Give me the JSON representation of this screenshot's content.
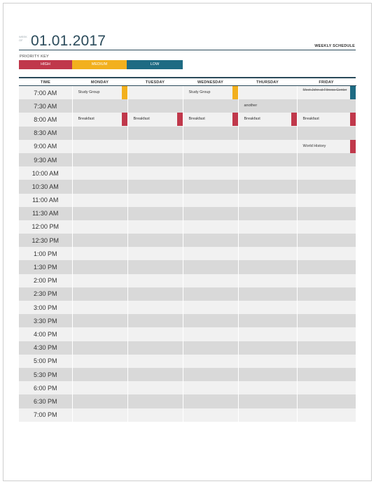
{
  "header": {
    "week_of": "WEEK OF",
    "date": "01.01.2017",
    "title": "WEEKLY SCHEDULE"
  },
  "priority_key": {
    "label": "PRIORITY KEY",
    "items": [
      {
        "label": "HIGH",
        "color": "#c0384b"
      },
      {
        "label": "MEDIUM",
        "color": "#f2b01e"
      },
      {
        "label": "LOW",
        "color": "#1e6b83"
      }
    ]
  },
  "columns": [
    "TIME",
    "MONDAY",
    "TUESDAY",
    "WEDNESDAY",
    "THURSDAY",
    "FRIDAY"
  ],
  "times": [
    "7:00 AM",
    "7:30 AM",
    "8:00 AM",
    "8:30 AM",
    "9:00 AM",
    "9:30 AM",
    "10:00 AM",
    "10:30 AM",
    "11:00 AM",
    "11:30 AM",
    "12:00 PM",
    "12:30 PM",
    "1:00 PM",
    "1:30 PM",
    "2:00 PM",
    "2:30 PM",
    "3:00 PM",
    "3:30 PM",
    "4:00 PM",
    "4:30 PM",
    "5:00 PM",
    "5:30 PM",
    "6:00 PM",
    "6:30 PM",
    "7:00 PM"
  ],
  "events": {
    "r0_mon": {
      "text": "Study Group",
      "priority": "medium"
    },
    "r0_wed": {
      "text": "Study Group",
      "priority": "medium"
    },
    "r0_fri": {
      "text": "Meet John at Fitness Center",
      "priority": "low"
    },
    "r1_thu": {
      "text": "another",
      "priority": ""
    },
    "r2_mon": {
      "text": "Breakfast",
      "priority": "high"
    },
    "r2_tue": {
      "text": "Breakfast",
      "priority": "high"
    },
    "r2_wed": {
      "text": "Breakfast",
      "priority": "high"
    },
    "r2_thu": {
      "text": "Breakfast",
      "priority": "high"
    },
    "r2_fri": {
      "text": "Breakfast",
      "priority": "high"
    },
    "r4_fri": {
      "text": "World History",
      "priority": "high"
    }
  }
}
